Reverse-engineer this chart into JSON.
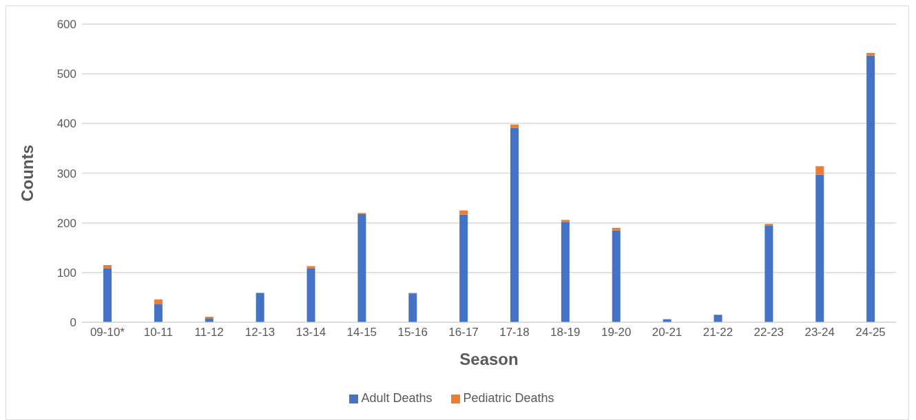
{
  "chart_data": {
    "type": "bar",
    "xlabel": "Season",
    "ylabel": "Counts",
    "categories": [
      "09-10*",
      "10-11",
      "11-12",
      "12-13",
      "13-14",
      "14-15",
      "15-16",
      "16-17",
      "17-18",
      "18-19",
      "19-20",
      "20-21",
      "21-22",
      "22-23",
      "23-24",
      "24-25"
    ],
    "series": [
      {
        "name": "Adult Deaths",
        "color": "#4472c4",
        "values": [
          108,
          36,
          8,
          59,
          108,
          218,
          58,
          217,
          391,
          202,
          185,
          6,
          15,
          194,
          297,
          537
        ]
      },
      {
        "name": "Pediatric Deaths",
        "color": "#ed7d31",
        "values": [
          7,
          10,
          3,
          0,
          5,
          2,
          1,
          8,
          7,
          4,
          5,
          0,
          0,
          4,
          17,
          5
        ]
      }
    ],
    "stacked": true,
    "ylim": [
      0,
      600
    ],
    "yticks": [
      0,
      100,
      200,
      300,
      400,
      500,
      600
    ],
    "grid": "y",
    "legend": "bottom"
  }
}
